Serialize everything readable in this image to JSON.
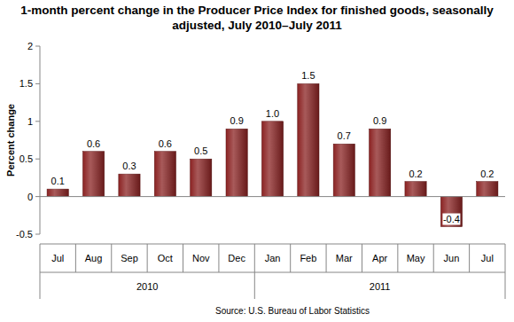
{
  "chart_data": {
    "type": "bar",
    "title": "1-month percent change in the Producer Price Index for finished goods, seasonally adjusted, July 2010–July 2011",
    "y_label": "Percent change",
    "source": "Source: U.S. Bureau of Labor Statistics",
    "categories": [
      "Jul",
      "Aug",
      "Sep",
      "Oct",
      "Nov",
      "Dec",
      "Jan",
      "Feb",
      "Mar",
      "Apr",
      "May",
      "Jun",
      "Jul"
    ],
    "category_groups": [
      "2010",
      "2010",
      "2010",
      "2010",
      "2010",
      "2010",
      "2011",
      "2011",
      "2011",
      "2011",
      "2011",
      "2011",
      "2011"
    ],
    "values": [
      0.1,
      0.6,
      0.3,
      0.6,
      0.5,
      0.9,
      1.0,
      1.5,
      0.7,
      0.9,
      0.2,
      -0.4,
      0.2
    ],
    "value_labels": [
      "0.1",
      "0.6",
      "0.3",
      "0.6",
      "0.5",
      "0.9",
      "1.0",
      "1.5",
      "0.7",
      "0.9",
      "0.2",
      "-0.4",
      "0.2"
    ],
    "color": "#8b2323",
    "ylim": [
      -0.5,
      2
    ],
    "yticks": [
      -0.5,
      0,
      0.5,
      1,
      1.5,
      2
    ],
    "grid": false,
    "data_labels": true
  }
}
